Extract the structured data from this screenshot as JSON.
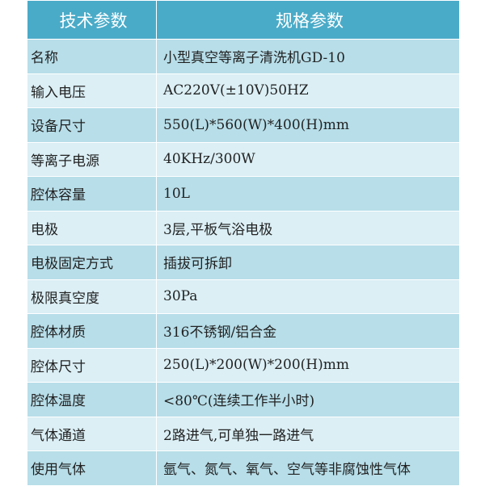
{
  "header": {
    "param": "技术参数",
    "spec": "规格参数"
  },
  "rows": [
    {
      "k": "名称",
      "v": "小型真空等离子清洗机GD-10"
    },
    {
      "k": "输入电压",
      "v": "AC220V(±10V)50HZ"
    },
    {
      "k": "设备尺寸",
      "v": "550(L)*560(W)*400(H)mm"
    },
    {
      "k": "等离子电源",
      "v": "40KHz/300W"
    },
    {
      "k": "腔体容量",
      "v": "10L"
    },
    {
      "k": "电极",
      "v": "3层,平板气浴电极"
    },
    {
      "k": "电极固定方式",
      "v": "插拔可拆卸"
    },
    {
      "k": "极限真空度",
      "v": "30Pa"
    },
    {
      "k": "腔体材质",
      "v": "316不锈钢/铝合金"
    },
    {
      "k": "腔体尺寸",
      "v": "250(L)*200(W)*200(H)mm"
    },
    {
      "k": "腔体温度",
      "v": "<80℃(连续工作半小时)"
    },
    {
      "k": "气体通道",
      "v": "2路进气,可单独一路进气"
    },
    {
      "k": "使用气体",
      "v": "氩气、氮气、氧气、空气等非腐蚀性气体"
    }
  ],
  "colors": {
    "header": "#4aabc8",
    "row_dark": "#b7dee9",
    "row_light": "#dbeff5"
  }
}
